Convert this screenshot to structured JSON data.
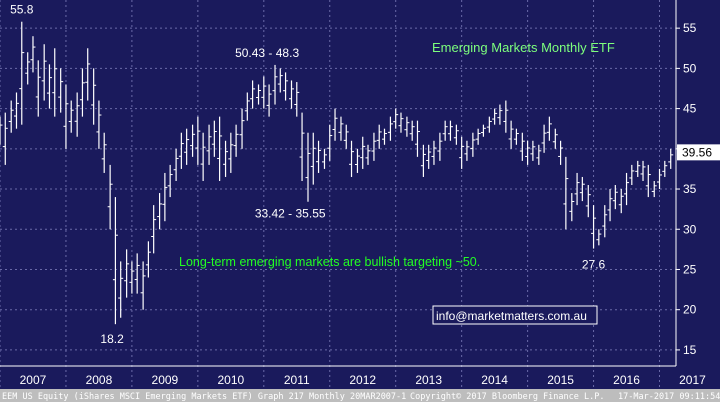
{
  "colors": {
    "background": "#1a1a5c",
    "bars": "#ffffff",
    "title": "#7dff7d",
    "note": "#22ff22",
    "grid": "#6a6aa8",
    "price_tag_bg": "#ffffff",
    "price_tag_text": "#000000",
    "footer_bg": "#bdbdbd"
  },
  "chart_data": {
    "type": "ohlc",
    "title": "Emerging Markets Monthly ETF",
    "note": "Long-term emerging markets are bullish targeting ~50.",
    "watermark": "info@marketmatters.com.au",
    "last_price": "39.56",
    "y_ticks": [
      15,
      20,
      25,
      30,
      35,
      40,
      45,
      50,
      55
    ],
    "ylim": [
      13,
      58.5
    ],
    "x_ticks": [
      "2007",
      "2008",
      "2009",
      "2010",
      "2011",
      "2012",
      "2013",
      "2014",
      "2015",
      "2016",
      "2017"
    ],
    "xlim": [
      2007.0,
      2017.25
    ],
    "grid": true,
    "annotations": [
      {
        "text": "55.8",
        "x": 2007.33,
        "y": 55.8
      },
      {
        "text": "50.43 - 48.3",
        "x": 2011.05,
        "y": 50.43
      },
      {
        "text": "33.42 - 35.55",
        "x": 2011.4,
        "y": 33.42
      },
      {
        "text": "18.2",
        "x": 2008.7,
        "y": 18.2
      },
      {
        "text": "27.6",
        "x": 2016.0,
        "y": 27.6
      }
    ],
    "bars_hl": [
      [
        2006.92,
        42.5,
        39.0
      ],
      [
        2007.0,
        44.0,
        40.5
      ],
      [
        2007.08,
        44.5,
        38.0
      ],
      [
        2007.17,
        46.0,
        42.0
      ],
      [
        2007.25,
        47.0,
        42.5
      ],
      [
        2007.33,
        55.8,
        43.0
      ],
      [
        2007.42,
        52.0,
        48.0
      ],
      [
        2007.5,
        54.0,
        49.5
      ],
      [
        2007.58,
        51.0,
        44.0
      ],
      [
        2007.67,
        53.0,
        46.0
      ],
      [
        2007.75,
        50.5,
        45.0
      ],
      [
        2007.83,
        52.5,
        44.0
      ],
      [
        2007.92,
        50.0,
        44.5
      ],
      [
        2008.0,
        48.0,
        40.0
      ],
      [
        2008.08,
        46.0,
        42.0
      ],
      [
        2008.17,
        47.0,
        41.5
      ],
      [
        2008.25,
        50.0,
        44.0
      ],
      [
        2008.33,
        52.5,
        46.0
      ],
      [
        2008.42,
        50.0,
        43.0
      ],
      [
        2008.5,
        46.0,
        40.0
      ],
      [
        2008.58,
        42.0,
        37.0
      ],
      [
        2008.67,
        38.0,
        30.0
      ],
      [
        2008.75,
        34.0,
        18.2
      ],
      [
        2008.83,
        26.0,
        19.0
      ],
      [
        2008.92,
        27.5,
        21.5
      ],
      [
        2009.0,
        26.0,
        22.0
      ],
      [
        2009.08,
        27.0,
        22.0
      ],
      [
        2009.17,
        26.0,
        20.0
      ],
      [
        2009.25,
        28.5,
        24.0
      ],
      [
        2009.33,
        33.0,
        27.0
      ],
      [
        2009.42,
        34.5,
        30.0
      ],
      [
        2009.5,
        37.0,
        31.0
      ],
      [
        2009.58,
        38.0,
        34.0
      ],
      [
        2009.67,
        40.0,
        36.0
      ],
      [
        2009.75,
        42.0,
        37.5
      ],
      [
        2009.83,
        42.5,
        38.0
      ],
      [
        2009.92,
        43.0,
        39.0
      ],
      [
        2010.0,
        44.0,
        38.0
      ],
      [
        2010.08,
        42.0,
        36.0
      ],
      [
        2010.17,
        43.0,
        38.0
      ],
      [
        2010.25,
        43.5,
        39.0
      ],
      [
        2010.33,
        44.0,
        36.0
      ],
      [
        2010.42,
        41.0,
        36.5
      ],
      [
        2010.5,
        42.0,
        37.0
      ],
      [
        2010.58,
        43.0,
        39.0
      ],
      [
        2010.67,
        45.0,
        40.0
      ],
      [
        2010.75,
        47.0,
        43.5
      ],
      [
        2010.83,
        48.5,
        45.0
      ],
      [
        2010.92,
        48.0,
        45.5
      ],
      [
        2011.0,
        49.0,
        45.0
      ],
      [
        2011.08,
        48.0,
        44.0
      ],
      [
        2011.17,
        50.43,
        45.5
      ],
      [
        2011.25,
        50.0,
        47.0
      ],
      [
        2011.33,
        49.5,
        46.0
      ],
      [
        2011.42,
        48.5,
        45.0
      ],
      [
        2011.5,
        48.3,
        44.0
      ],
      [
        2011.58,
        44.5,
        36.0
      ],
      [
        2011.67,
        42.0,
        33.42
      ],
      [
        2011.75,
        42.0,
        35.55
      ],
      [
        2011.83,
        41.0,
        37.0
      ],
      [
        2011.92,
        40.0,
        37.5
      ],
      [
        2012.0,
        43.0,
        38.5
      ],
      [
        2012.08,
        45.0,
        41.0
      ],
      [
        2012.17,
        44.0,
        41.0
      ],
      [
        2012.25,
        43.0,
        40.0
      ],
      [
        2012.33,
        41.0,
        36.5
      ],
      [
        2012.42,
        40.0,
        37.0
      ],
      [
        2012.5,
        41.5,
        37.5
      ],
      [
        2012.58,
        40.5,
        38.0
      ],
      [
        2012.67,
        42.0,
        38.5
      ],
      [
        2012.75,
        43.0,
        40.0
      ],
      [
        2012.83,
        42.5,
        40.5
      ],
      [
        2012.92,
        44.0,
        41.0
      ],
      [
        2013.0,
        45.0,
        42.5
      ],
      [
        2013.08,
        44.5,
        42.0
      ],
      [
        2013.17,
        44.0,
        41.5
      ],
      [
        2013.25,
        43.5,
        41.0
      ],
      [
        2013.33,
        43.5,
        39.0
      ],
      [
        2013.42,
        40.5,
        36.5
      ],
      [
        2013.5,
        40.5,
        37.5
      ],
      [
        2013.58,
        41.0,
        38.0
      ],
      [
        2013.67,
        42.0,
        38.5
      ],
      [
        2013.75,
        43.5,
        41.0
      ],
      [
        2013.83,
        43.5,
        41.0
      ],
      [
        2013.92,
        43.0,
        40.5
      ],
      [
        2014.0,
        41.5,
        37.5
      ],
      [
        2014.08,
        41.0,
        38.5
      ],
      [
        2014.17,
        42.0,
        39.0
      ],
      [
        2014.25,
        42.5,
        40.5
      ],
      [
        2014.33,
        43.0,
        41.5
      ],
      [
        2014.42,
        44.0,
        42.0
      ],
      [
        2014.5,
        45.0,
        43.0
      ],
      [
        2014.58,
        45.5,
        43.0
      ],
      [
        2014.67,
        46.0,
        42.0
      ],
      [
        2014.75,
        43.5,
        40.0
      ],
      [
        2014.83,
        42.5,
        40.5
      ],
      [
        2014.92,
        42.0,
        38.5
      ],
      [
        2015.0,
        41.0,
        38.0
      ],
      [
        2015.08,
        41.0,
        38.5
      ],
      [
        2015.17,
        40.5,
        38.0
      ],
      [
        2015.25,
        43.0,
        39.5
      ],
      [
        2015.33,
        44.0,
        41.0
      ],
      [
        2015.42,
        42.5,
        40.0
      ],
      [
        2015.5,
        41.0,
        38.0
      ],
      [
        2015.58,
        39.0,
        30.0
      ],
      [
        2015.67,
        34.5,
        31.0
      ],
      [
        2015.75,
        37.0,
        33.0
      ],
      [
        2015.83,
        36.5,
        33.5
      ],
      [
        2015.92,
        35.5,
        31.5
      ],
      [
        2016.0,
        33.0,
        27.6
      ],
      [
        2016.08,
        30.0,
        28.0
      ],
      [
        2016.17,
        33.0,
        29.0
      ],
      [
        2016.25,
        35.0,
        31.0
      ],
      [
        2016.33,
        35.5,
        32.5
      ],
      [
        2016.42,
        35.0,
        32.0
      ],
      [
        2016.5,
        37.0,
        33.0
      ],
      [
        2016.58,
        38.0,
        35.5
      ],
      [
        2016.67,
        38.5,
        36.5
      ],
      [
        2016.75,
        38.5,
        36.0
      ],
      [
        2016.83,
        38.0,
        34.0
      ],
      [
        2016.92,
        36.0,
        34.0
      ],
      [
        2017.0,
        37.5,
        35.0
      ],
      [
        2017.08,
        38.5,
        36.5
      ],
      [
        2017.17,
        40.0,
        37.5
      ]
    ]
  },
  "footer": {
    "left": "EEM US Equity (iShares MSCI Emerging Markets ETF) Graph 217  Monthly 20MAR2007-1",
    "center": "Copyright© 2017 Bloomberg Finance L.P.",
    "right": "17-Mar-2017 09:11:54"
  }
}
